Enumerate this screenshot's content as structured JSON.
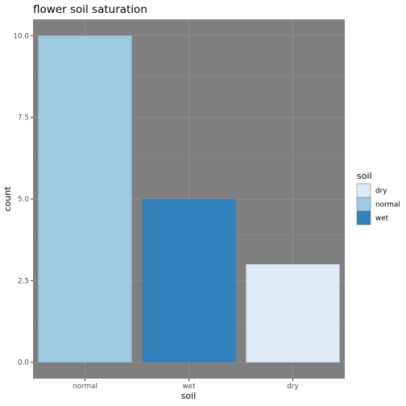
{
  "chart_data": {
    "type": "bar",
    "title": "flower soil saturation",
    "xlabel": "soil",
    "ylabel": "count",
    "categories": [
      "normal",
      "wet",
      "dry"
    ],
    "values": [
      10,
      5,
      3
    ],
    "ylim": [
      -0.5,
      10.5
    ],
    "yticks": [
      0,
      2.5,
      5,
      7.5,
      10
    ],
    "ytick_labels": [
      "0.0",
      "2.5",
      "5.0",
      "7.5",
      "10.0"
    ],
    "grid": true,
    "panel_background": "#7f7f7f",
    "bar_colors": {
      "dry": "#deebf7",
      "normal": "#9ecae1",
      "wet": "#3182bd"
    },
    "legend": {
      "title": "soil",
      "placement": "right",
      "entries": [
        "dry",
        "normal",
        "wet"
      ]
    }
  }
}
